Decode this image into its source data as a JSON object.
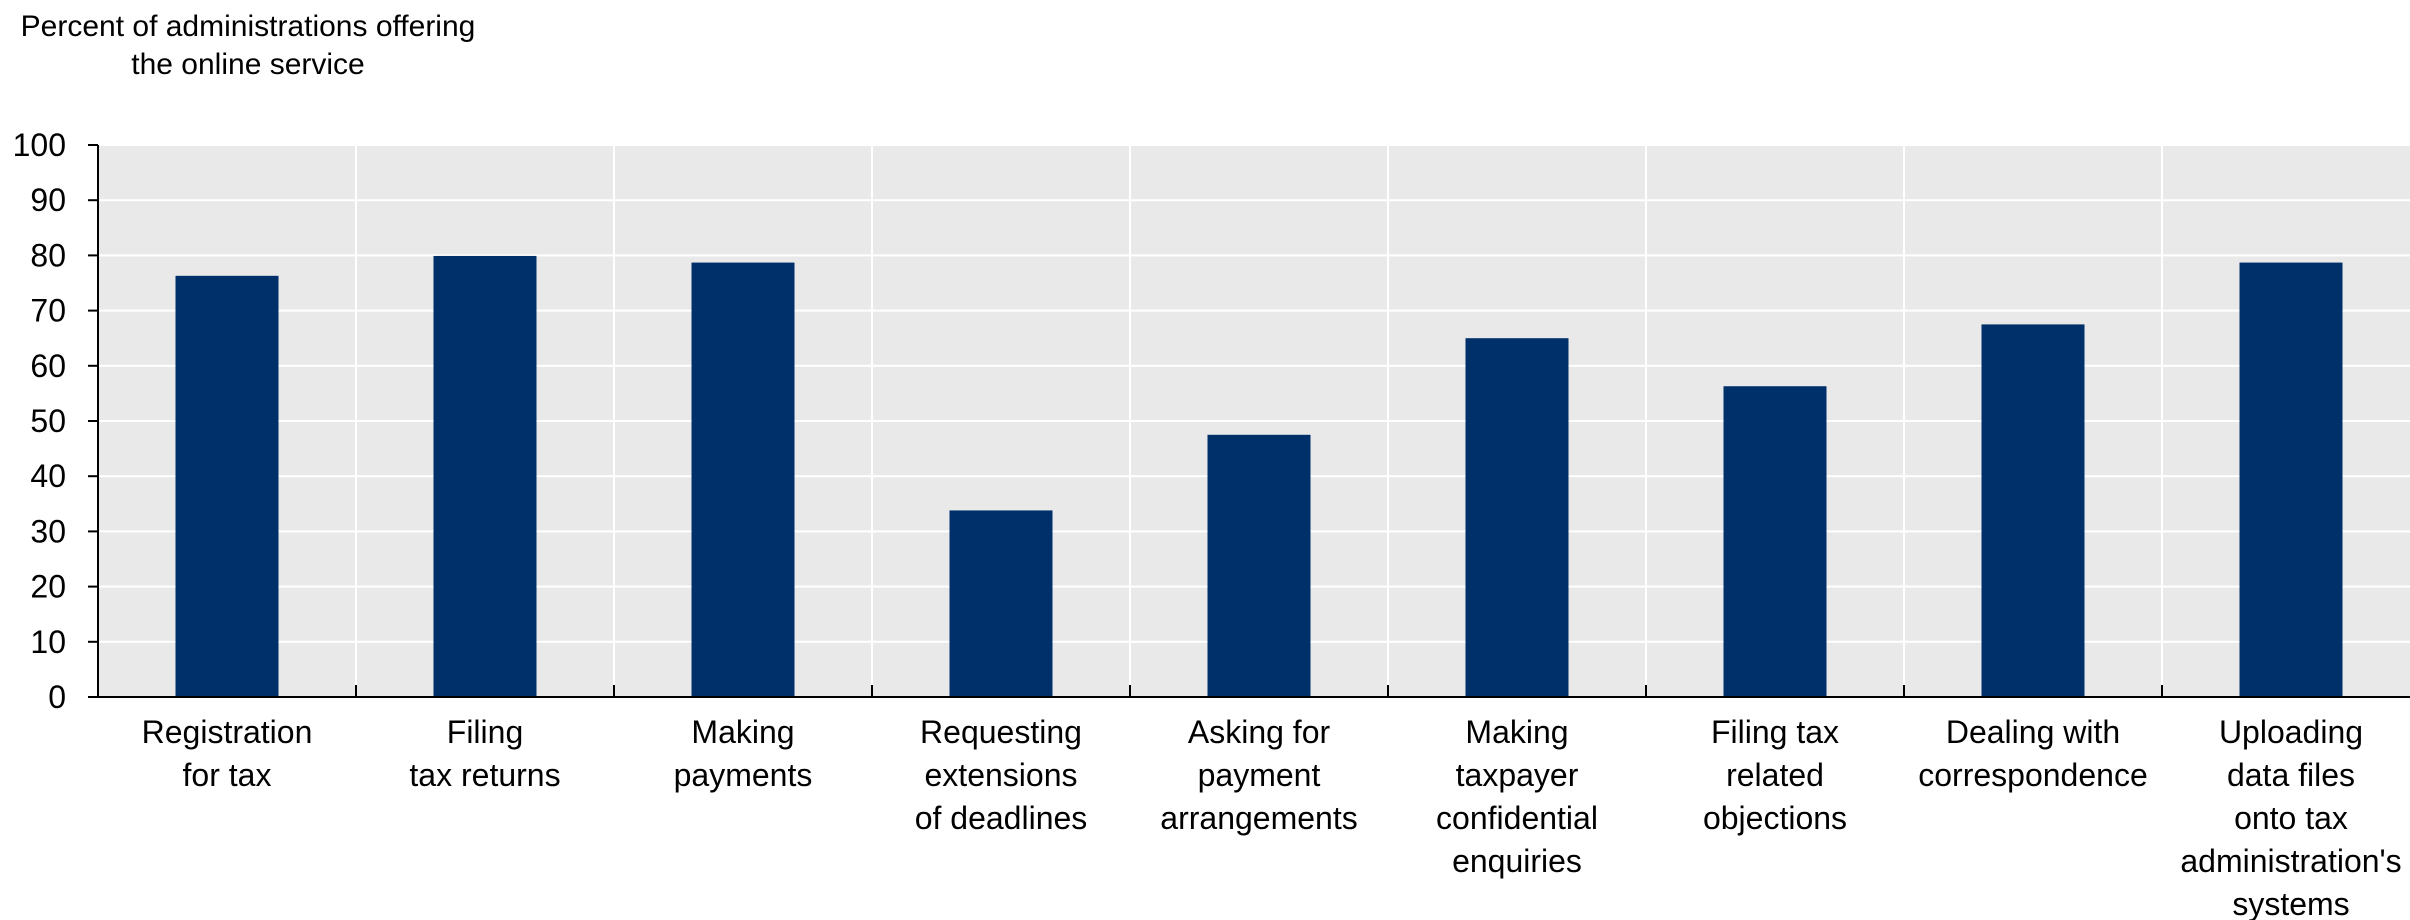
{
  "chart_data": {
    "type": "bar",
    "ylabel_lines": [
      "Percent of administrations offering",
      "the online service"
    ],
    "xlabel": "",
    "categories": [
      [
        "Registration",
        "for tax"
      ],
      [
        "Filing",
        "tax returns"
      ],
      [
        "Making",
        "payments"
      ],
      [
        "Requesting",
        "extensions",
        "of deadlines"
      ],
      [
        "Asking for",
        "payment",
        "arrangements"
      ],
      [
        "Making",
        "taxpayer",
        "confidential",
        "enquiries"
      ],
      [
        "Filing tax",
        "related",
        "objections"
      ],
      [
        "Dealing with",
        "correspondence"
      ],
      [
        "Uploading",
        "data files",
        "onto tax",
        "administration's",
        "systems"
      ]
    ],
    "values": [
      76.3,
      79.9,
      78.7,
      33.8,
      47.5,
      65.0,
      56.3,
      67.5,
      78.7
    ],
    "ylim": [
      0,
      100
    ],
    "yticks": [
      0,
      10,
      20,
      30,
      40,
      50,
      60,
      70,
      80,
      90,
      100
    ],
    "grid": true,
    "colors": {
      "bar": "#00306a",
      "plot_background": "#e9e9e9",
      "grid": "#ffffff",
      "axis": "#000000"
    }
  }
}
